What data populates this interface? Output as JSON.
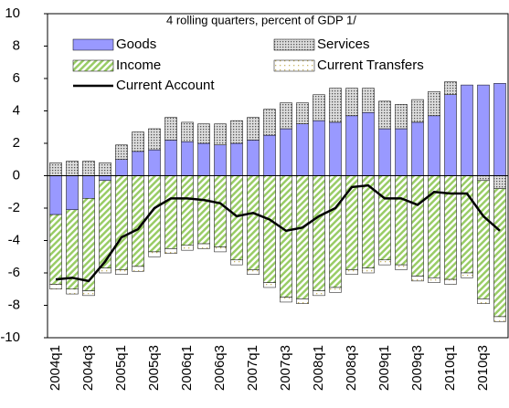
{
  "chart_data": {
    "type": "bar",
    "stacked": true,
    "subtitle": "4 rolling quarters, percent of GDP 1/",
    "categories": [
      "2004q1",
      null,
      "2004q3",
      null,
      "2005q1",
      null,
      "2005q3",
      null,
      "2006q1",
      null,
      "2006q3",
      null,
      "2007q1",
      null,
      "2007q3",
      null,
      "2008q1",
      null,
      "2008q3",
      null,
      "2009q1",
      null,
      "2009q3",
      null,
      "2010q1",
      null,
      "2010q3",
      null
    ],
    "series": [
      {
        "name": "Goods",
        "color": "#9999ff",
        "pattern": "solid",
        "values": [
          -2.4,
          -2.1,
          -1.4,
          -0.3,
          1.0,
          1.5,
          1.6,
          2.2,
          2.1,
          2.0,
          1.9,
          2.0,
          2.2,
          2.5,
          2.9,
          3.2,
          3.4,
          3.3,
          3.7,
          3.9,
          2.9,
          2.9,
          3.3,
          3.7,
          5.0,
          5.6,
          5.6,
          5.7
        ]
      },
      {
        "name": "Services",
        "color": "#555555",
        "pattern": "dense-dots",
        "values": [
          0.8,
          0.9,
          0.9,
          0.8,
          0.9,
          1.2,
          1.3,
          1.4,
          1.2,
          1.2,
          1.3,
          1.4,
          1.4,
          1.6,
          1.6,
          1.3,
          1.6,
          2.1,
          1.7,
          1.5,
          1.7,
          1.5,
          1.4,
          1.5,
          0.8,
          0.0,
          -0.3,
          -0.8
        ]
      },
      {
        "name": "Income",
        "color": "#99cc66",
        "pattern": "hatch",
        "values": [
          -4.3,
          -4.9,
          -5.7,
          -5.4,
          -5.8,
          -5.6,
          -4.7,
          -4.5,
          -4.3,
          -4.2,
          -4.4,
          -5.2,
          -5.8,
          -6.6,
          -7.5,
          -7.6,
          -7.1,
          -6.9,
          -5.8,
          -5.7,
          -5.2,
          -5.5,
          -6.2,
          -6.3,
          -6.4,
          -6.0,
          -7.3,
          -7.9
        ]
      },
      {
        "name": "Current Transfers",
        "color": "#c8b464",
        "pattern": "sparse-dots",
        "values": [
          -0.3,
          -0.3,
          -0.3,
          -0.3,
          -0.3,
          -0.3,
          -0.3,
          -0.3,
          -0.3,
          -0.3,
          -0.3,
          -0.3,
          -0.3,
          -0.3,
          -0.3,
          -0.3,
          -0.3,
          -0.3,
          -0.3,
          -0.3,
          -0.3,
          -0.3,
          -0.3,
          -0.3,
          -0.3,
          -0.3,
          -0.3,
          -0.3
        ]
      },
      {
        "name": "Current Account",
        "color": "#000000",
        "kind": "line",
        "values": [
          -6.4,
          -6.3,
          -6.5,
          -5.3,
          -3.8,
          -3.3,
          -2.0,
          -1.4,
          -1.4,
          -1.5,
          -1.7,
          -2.5,
          -2.3,
          -2.7,
          -3.4,
          -3.2,
          -2.5,
          -2.0,
          -0.7,
          -0.6,
          -1.4,
          -1.4,
          -1.8,
          -1.0,
          -1.1,
          -1.1,
          -2.5,
          -3.4
        ]
      }
    ],
    "ylim": [
      -10,
      10
    ],
    "yticks": [
      -10,
      -8,
      -6,
      -4,
      -2,
      0,
      2,
      4,
      6,
      8,
      10
    ]
  }
}
